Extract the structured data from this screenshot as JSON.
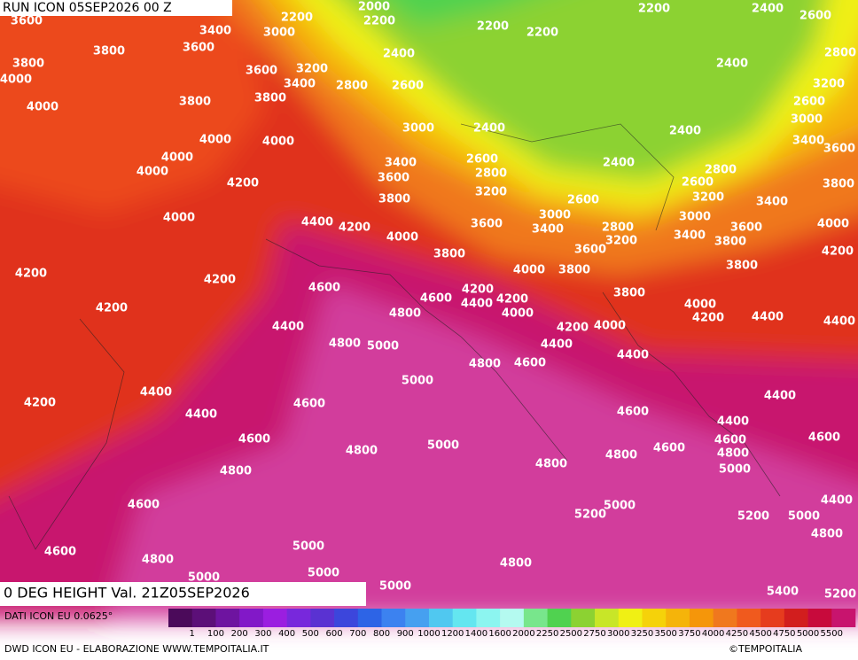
{
  "header": {
    "run": "RUN ICON 05SEP2026 00 Z",
    "field": "0 DEG HEIGHT Val. 21Z05SEP2026"
  },
  "source": "DATI ICON EU 0.0625°",
  "footer": {
    "left": "DWD ICON EU - ELABORAZIONE WWW.TEMPOITALIA.IT",
    "right": "©TEMPOITALIA"
  },
  "colorbar": {
    "labels": [
      "1",
      "100",
      "200",
      "300",
      "400",
      "500",
      "600",
      "700",
      "800",
      "900",
      "1000",
      "1200",
      "1400",
      "1600",
      "2000",
      "2250",
      "2500",
      "2750",
      "3000",
      "3250",
      "3500",
      "3750",
      "4000",
      "4250",
      "4500",
      "4750",
      "5000",
      "5500"
    ],
    "colors": [
      "#4b0a5a",
      "#5c0f78",
      "#6e14a0",
      "#8218c8",
      "#9b1ee0",
      "#7828dc",
      "#5a32d2",
      "#3c46dc",
      "#2d64e6",
      "#3c82f0",
      "#46a0f0",
      "#50c8f0",
      "#64e6f0",
      "#8cf5f0",
      "#b4faf0",
      "#78e68c",
      "#50d250",
      "#8cd232",
      "#c8e628",
      "#f0f014",
      "#f5d20a",
      "#f5b40a",
      "#f5960a",
      "#f0781e",
      "#f05a1e",
      "#e63c1e",
      "#d21e1e",
      "#c80a3c",
      "#c8146e"
    ]
  },
  "contour_labels": [
    "3600",
    "3400",
    "2200",
    "2000",
    "2200",
    "3000",
    "2200",
    "2200",
    "2200",
    "2400",
    "2600",
    "3800",
    "3600",
    "3800",
    "4000",
    "2400",
    "3200",
    "3600",
    "3400",
    "2800",
    "2600",
    "2400",
    "2800",
    "3200",
    "3800",
    "3800",
    "4000",
    "2600",
    "3000",
    "3000",
    "2400",
    "2400",
    "4000",
    "4000",
    "3400",
    "3600",
    "4000",
    "3400",
    "2600",
    "2400",
    "4000",
    "3600",
    "2800",
    "2800",
    "4200",
    "3800",
    "3200",
    "2600",
    "3800",
    "2600",
    "3200",
    "3400",
    "4000",
    "4400",
    "4200",
    "3000",
    "3000",
    "3600",
    "3400",
    "2800",
    "3200",
    "3400",
    "3600",
    "3800",
    "4000",
    "4000",
    "3600",
    "3800",
    "4200",
    "4200",
    "4000",
    "3800",
    "3800",
    "4200",
    "4600",
    "4200",
    "4600",
    "4200",
    "4400",
    "3800",
    "4200",
    "4000",
    "4800",
    "4000",
    "4200",
    "4400",
    "4400",
    "4400",
    "4200",
    "4000",
    "4800",
    "5000",
    "4400",
    "4400",
    "4800",
    "4600",
    "5000",
    "4400",
    "4400",
    "4200",
    "4600",
    "4600",
    "4400",
    "4400",
    "4600",
    "5000",
    "4600",
    "4600",
    "4600",
    "4800",
    "4800",
    "4800",
    "4800",
    "5000",
    "4800",
    "4600",
    "5000",
    "5200",
    "5200",
    "5000",
    "4400",
    "4800",
    "5000",
    "4600",
    "4800",
    "4800",
    "5000",
    "5000",
    "5000",
    "5400",
    "5200"
  ]
}
